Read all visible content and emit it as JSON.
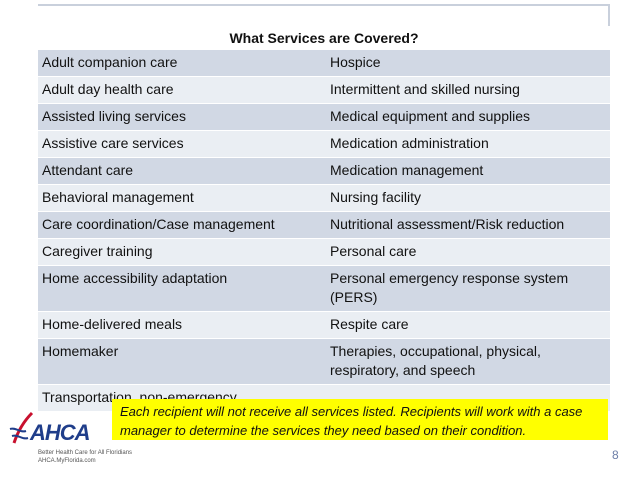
{
  "table": {
    "header": "What Services are Covered?",
    "rows": [
      [
        "Adult companion care",
        "Hospice"
      ],
      [
        "Adult day health care",
        "Intermittent and skilled nursing"
      ],
      [
        "Assisted living services",
        "Medical equipment and supplies"
      ],
      [
        "Assistive care services",
        "Medication administration"
      ],
      [
        "Attendant care",
        "Medication management"
      ],
      [
        "Behavioral management",
        "Nursing facility"
      ],
      [
        "Care coordination/Case management",
        "Nutritional assessment/Risk reduction"
      ],
      [
        "Caregiver training",
        "Personal care"
      ],
      [
        "Home accessibility adaptation",
        "Personal emergency response system (PERS)"
      ],
      [
        "Home-delivered meals",
        "Respite care"
      ],
      [
        "Homemaker",
        "Therapies, occupational, physical, respiratory, and speech"
      ],
      [
        "Transportation, non-emergency",
        ""
      ]
    ]
  },
  "callout": "Each recipient will not receive all services listed.  Recipients will  work with a case manager to determine the services they  need based on their condition.",
  "logo": {
    "wordmark": "AHCA",
    "tagline": "Better Health Care for All Floridians",
    "url": "AHCA.MyFlorida.com"
  },
  "page_number": "8",
  "colors": {
    "row_dark": "#d1d8e4",
    "row_light": "#eaeef3",
    "callout_bg": "#ffff00",
    "logo_blue": "#1f3d8a",
    "logo_red": "#c8102e"
  }
}
